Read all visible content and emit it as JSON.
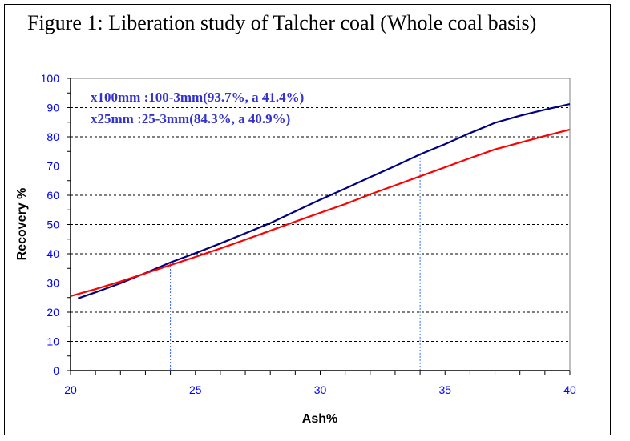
{
  "chart_data": {
    "type": "line",
    "title": "Figure 1: Liberation study of Talcher coal (Whole coal basis)",
    "xlabel": "Ash%",
    "ylabel": "Recovery %",
    "xlim": [
      20,
      40
    ],
    "ylim": [
      0,
      100
    ],
    "xticks": [
      20,
      25,
      30,
      35,
      40
    ],
    "yticks": [
      0,
      10,
      20,
      30,
      40,
      50,
      60,
      70,
      80,
      90,
      100
    ],
    "grid": "horizontal dashed",
    "series": [
      {
        "name": "x100mm :100-3mm(93.7%, a 41.4%)",
        "color": "#000080",
        "x": [
          20.3,
          21,
          22,
          23,
          24,
          25,
          26,
          27,
          28,
          29,
          30,
          31,
          32,
          33,
          34,
          35,
          36,
          37,
          38,
          39,
          40
        ],
        "y": [
          24.7,
          26.8,
          29.9,
          33.4,
          37.0,
          40.2,
          43.5,
          47.0,
          50.5,
          54.5,
          58.5,
          62.3,
          66.2,
          70.0,
          74.0,
          77.5,
          81.3,
          84.8,
          87.2,
          89.3,
          91.2
        ]
      },
      {
        "name": "x25mm :25-3mm(84.3%, a 40.9%)",
        "color": "#ff0000",
        "x": [
          20,
          21,
          22,
          23,
          24,
          25,
          26,
          27,
          28,
          29,
          30,
          31,
          32,
          33,
          34,
          35,
          36,
          37,
          38,
          39,
          40
        ],
        "y": [
          25.5,
          27.9,
          30.5,
          33.3,
          36.1,
          38.9,
          41.8,
          44.8,
          47.9,
          51.0,
          54.0,
          57.0,
          60.3,
          63.4,
          66.5,
          69.6,
          72.7,
          75.7,
          78.0,
          80.3,
          82.5
        ]
      }
    ],
    "dropLines": [
      {
        "x": 24,
        "y": 37.0
      },
      {
        "x": 34,
        "y": 74.0
      }
    ]
  }
}
